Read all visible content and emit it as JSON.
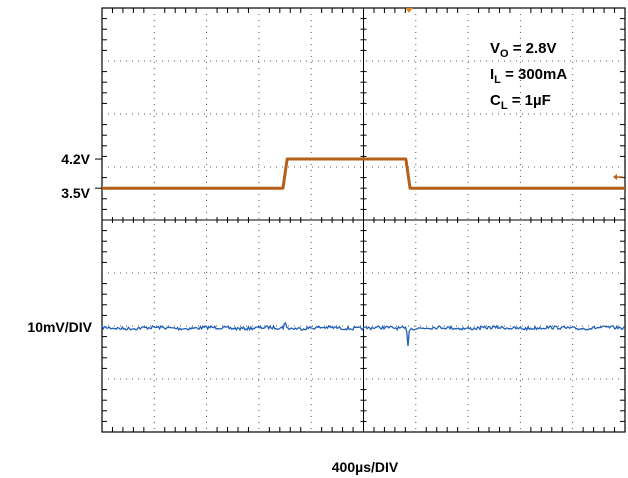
{
  "chart_data": {
    "type": "line",
    "grid": true,
    "grid_divisions": {
      "x": 10,
      "y": 8
    },
    "time_label": "400µs/DIV",
    "conditions": [
      {
        "sym": "V",
        "sub": "O",
        "val": " = 2.8V"
      },
      {
        "sym": "I",
        "sub": "L",
        "val": " = 300mA"
      },
      {
        "sym": "C",
        "sub": "L",
        "val": " = 1µF"
      }
    ],
    "input_trace": {
      "color": "#b5601a",
      "y_unit_labels": [
        "4.2V",
        "3.5V"
      ],
      "y_div_per_0_7V": 0.55,
      "low_value": 3.5,
      "high_value": 4.2,
      "step_up_div": 3.5,
      "step_down_div": 5.85,
      "edge_time_div": 0.08
    },
    "output_trace": {
      "color": "#1f5fb8",
      "y_label": "10mV/DIV",
      "baseline_div": 6.0,
      "transients": [
        {
          "x_div": 3.5,
          "deviation_div": -0.15
        },
        {
          "x_div": 5.85,
          "deviation_div": 0.35
        }
      ]
    }
  }
}
